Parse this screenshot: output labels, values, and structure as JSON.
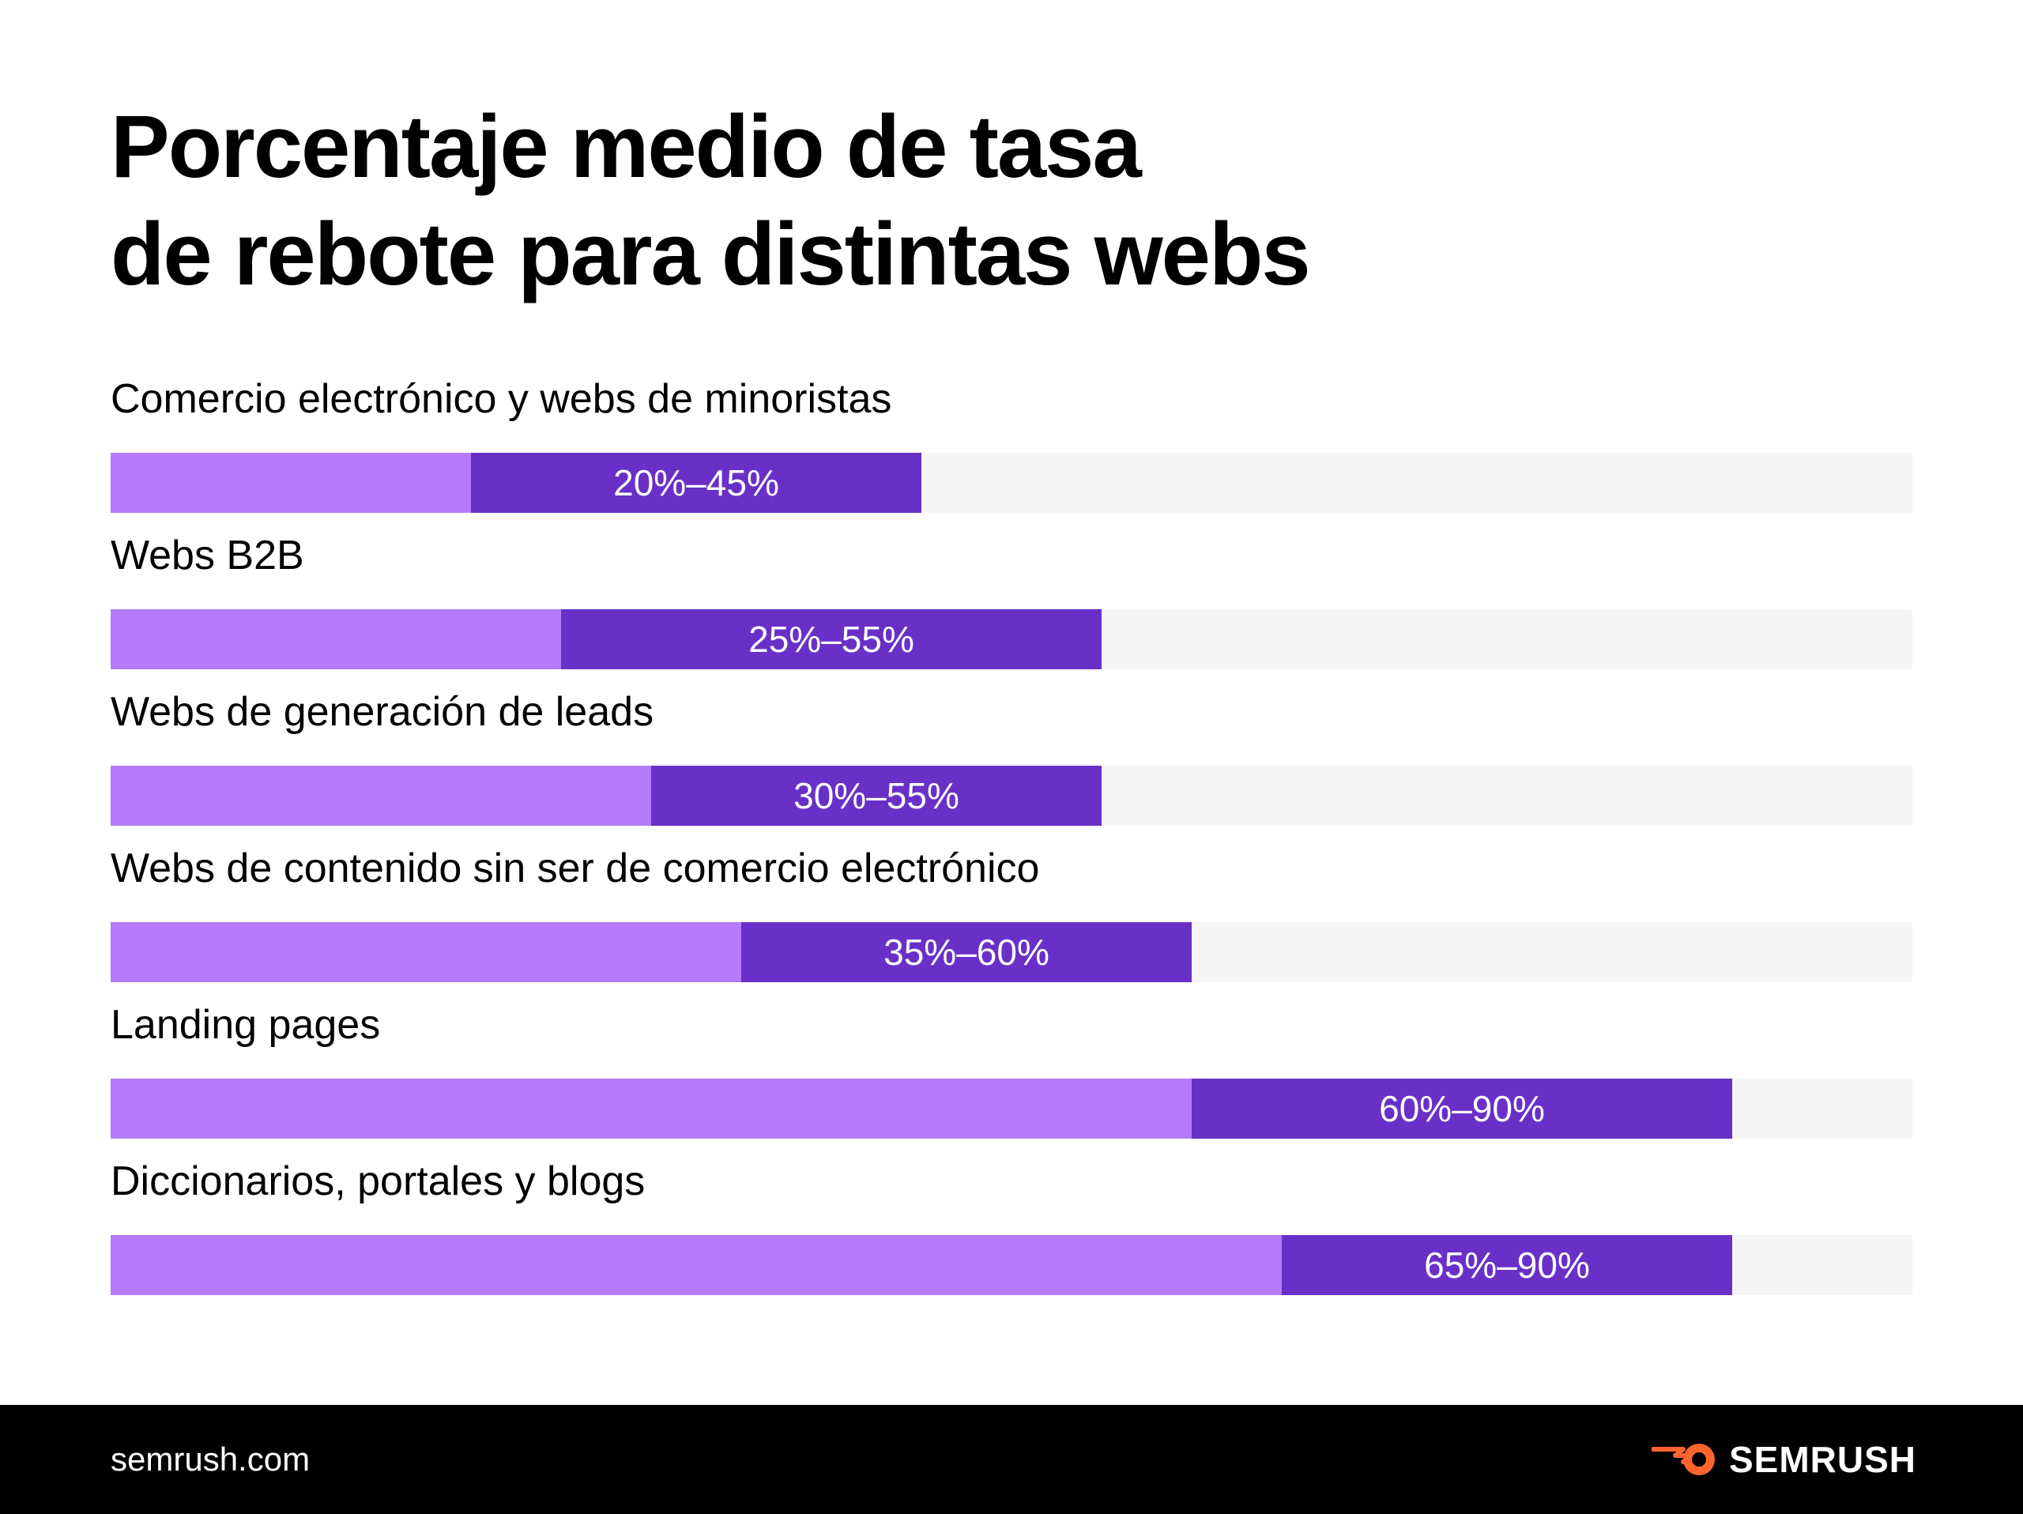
{
  "chart_data": {
    "type": "bar",
    "orientation": "horizontal",
    "title": [
      "Porcentaje medio de tasa",
      "de rebote para distintas webs"
    ],
    "categories": [
      "Comercio electrónico y webs de minoristas",
      "Webs B2B",
      "Webs de generación de leads",
      "Webs de contenido sin ser de comercio electrónico",
      "Landing pages",
      "Diccionarios, portales y blogs"
    ],
    "series": [
      {
        "values": [
          [
            20,
            45
          ],
          [
            25,
            55
          ],
          [
            30,
            55
          ],
          [
            35,
            60
          ],
          [
            60,
            90
          ],
          [
            65,
            90
          ]
        ]
      }
    ],
    "data_labels": [
      "20%–45%",
      "25%–55%",
      "30%–55%",
      "35%–60%",
      "60%–90%",
      "65%–90%"
    ],
    "xlim": [
      0,
      100
    ],
    "grid": false,
    "legend": "none",
    "colors": {
      "below_range": "#b57bfc",
      "range": "#6930c8",
      "track": "#f5f5f5",
      "range_label": "#ffffff"
    }
  },
  "footer": {
    "url": "semrush.com",
    "brand": "SEMRUSH",
    "brand_icon": "semrush-fireball-icon",
    "brand_color": "#ff642d"
  }
}
